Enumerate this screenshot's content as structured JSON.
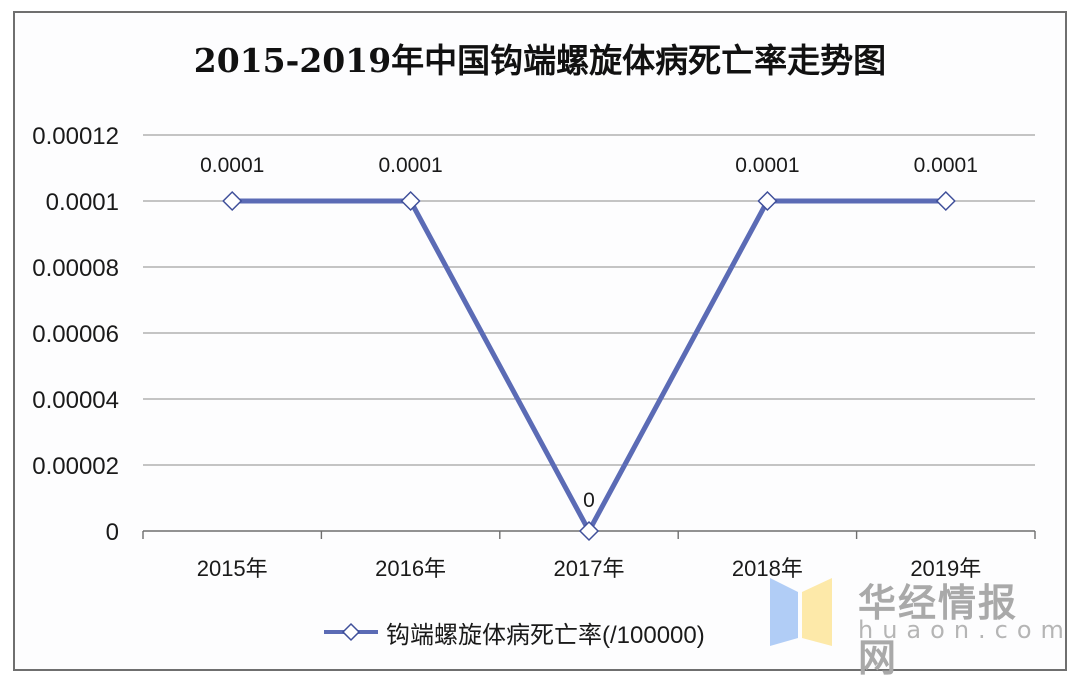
{
  "chart_data": {
    "type": "line",
    "title": "2015-2019年中国钩端螺旋体病死亡率走势图",
    "categories": [
      "2015年",
      "2016年",
      "2017年",
      "2018年",
      "2019年"
    ],
    "series": [
      {
        "name": "钩端螺旋体病死亡率(/100000)",
        "values": [
          0.0001,
          0.0001,
          0,
          0.0001,
          0.0001
        ],
        "data_labels": [
          "0.0001",
          "0.0001",
          "0",
          "0.0001",
          "0.0001"
        ],
        "color": "#5b6bb5",
        "marker": "diamond-hollow"
      }
    ],
    "xlabel": "",
    "ylabel": "",
    "ylim": [
      0,
      0.00012
    ],
    "yticks": [
      "0",
      "0.00002",
      "0.00004",
      "0.00006",
      "0.00008",
      "0.0001",
      "0.00012"
    ],
    "grid": "horizontal",
    "legend_position": "bottom"
  },
  "title": "2015-2019年中国钩端螺旋体病死亡率走势图",
  "legend": {
    "label": "钩端螺旋体病死亡率(/100000)"
  },
  "watermark": {
    "name": "华经情报网",
    "domain": "huaon.com"
  }
}
